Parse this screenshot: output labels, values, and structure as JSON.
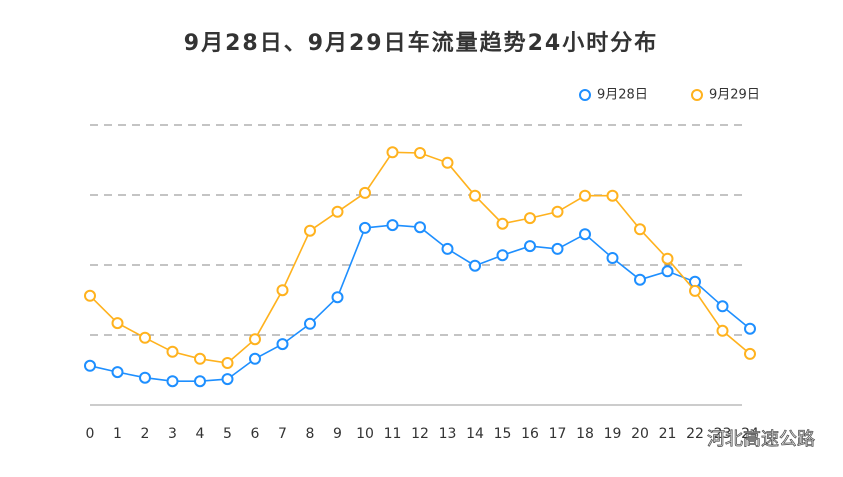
{
  "chart_data": {
    "type": "line",
    "title": "9月28日、9月29日车流量趋势24小时分布",
    "categories": [
      "0",
      "1",
      "2",
      "3",
      "4",
      "5",
      "6",
      "7",
      "8",
      "9",
      "10",
      "11",
      "12",
      "13",
      "14",
      "15",
      "16",
      "17",
      "18",
      "19",
      "20",
      "21",
      "22",
      "23",
      "24"
    ],
    "series": [
      {
        "name": "9月28日",
        "color": "#1e8fff",
        "values": [
          0.56,
          0.47,
          0.39,
          0.34,
          0.34,
          0.37,
          0.66,
          0.87,
          1.16,
          1.54,
          2.53,
          2.57,
          2.54,
          2.23,
          1.99,
          2.14,
          2.27,
          2.23,
          2.44,
          2.1,
          1.79,
          1.91,
          1.76,
          1.41,
          1.09
        ]
      },
      {
        "name": "9月29日",
        "color": "#ffb21e",
        "values": [
          1.56,
          1.17,
          0.96,
          0.76,
          0.66,
          0.6,
          0.94,
          1.64,
          2.49,
          2.76,
          3.03,
          3.61,
          3.6,
          3.46,
          2.99,
          2.59,
          2.67,
          2.76,
          2.99,
          2.99,
          2.51,
          2.09,
          1.63,
          1.06,
          0.73
        ]
      }
    ],
    "ylim": [
      0,
      4
    ],
    "yticks": [
      1,
      2,
      3,
      4
    ],
    "grid": true,
    "legend": "top-right",
    "watermark": "河北高速公路"
  }
}
